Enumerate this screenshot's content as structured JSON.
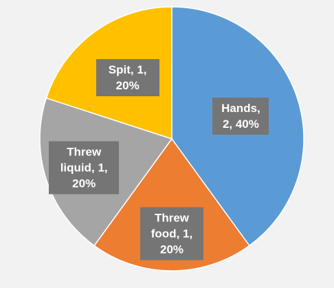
{
  "chart_data": {
    "type": "pie",
    "categories": [
      "Hands",
      "Threw food",
      "Threw liquid",
      "Spit"
    ],
    "values": [
      2,
      1,
      1,
      1
    ],
    "percentages": [
      40,
      20,
      20,
      20
    ],
    "value_labels": [
      "Hands, 2, 40%",
      "Threw food, 1, 20%",
      "Threw liquid, 1, 20%",
      "Spit, 1, 20%"
    ],
    "colors": [
      "#5b9bd5",
      "#ed7d31",
      "#a5a5a5",
      "#ffc000"
    ]
  }
}
